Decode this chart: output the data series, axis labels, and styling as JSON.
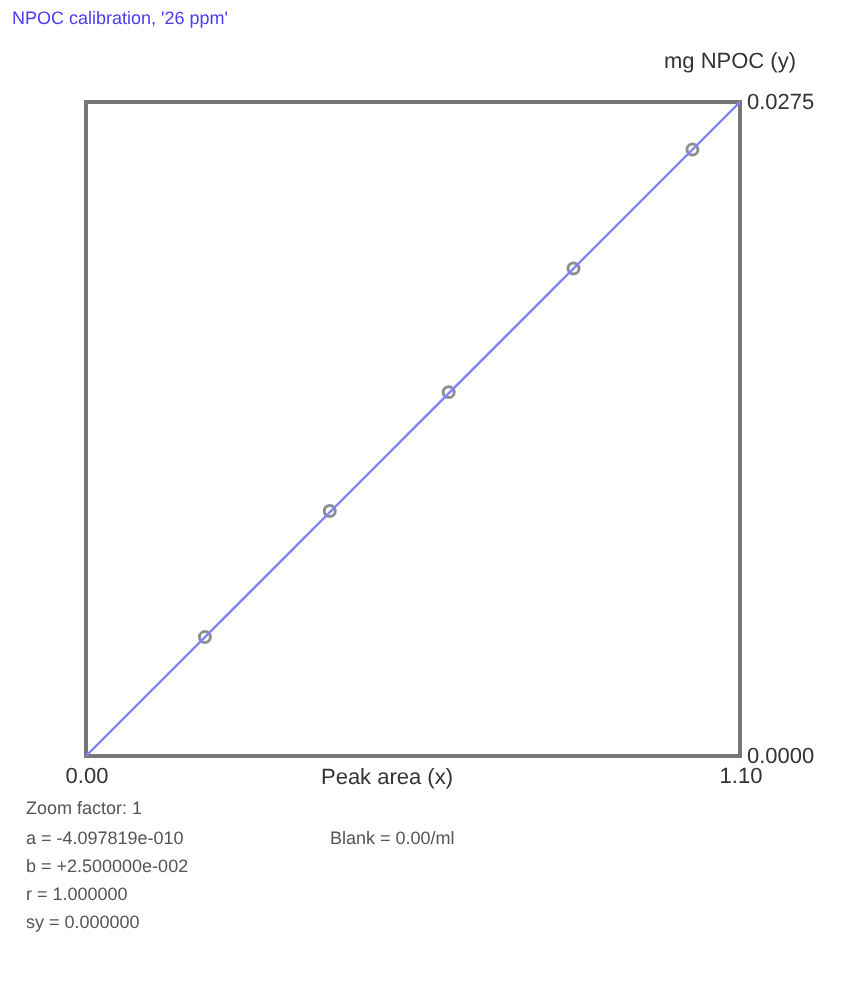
{
  "chart_data": {
    "type": "scatter",
    "title": "NPOC calibration, '26 ppm'",
    "xlabel": "Peak area (x)",
    "ylabel": "mg NPOC (y)",
    "x": [
      0.2,
      0.41,
      0.61,
      0.82,
      1.02
    ],
    "series": [
      {
        "type": "scatter",
        "color": "#606060",
        "marker": "circle",
        "values": [
          0.005,
          0.0103,
          0.0153,
          0.0205,
          0.0255
        ]
      },
      {
        "type": "line",
        "color": "#8080ff",
        "x": [
          0,
          1.1
        ],
        "values": [
          0,
          0.0275
        ],
        "marker": "none",
        "line_style": "solid"
      }
    ],
    "xlim": [
      0,
      1.1
    ],
    "ylim": [
      0,
      0.0275
    ],
    "xticks": [
      {
        "value": 0,
        "label": "0.00"
      },
      {
        "value": 1.1,
        "label": "1.10"
      }
    ],
    "yticks": [
      {
        "value": 0,
        "label": "0.0000"
      },
      0.0275
    ],
    "grid": false,
    "annotations": [
      "Zoom factor:  1",
      "a = -4.097819e-010",
      "b = +2.500000e-002",
      "r = 1.000000",
      "sy = 0.000000",
      "Blank = 0.00/ml"
    ]
  }
}
